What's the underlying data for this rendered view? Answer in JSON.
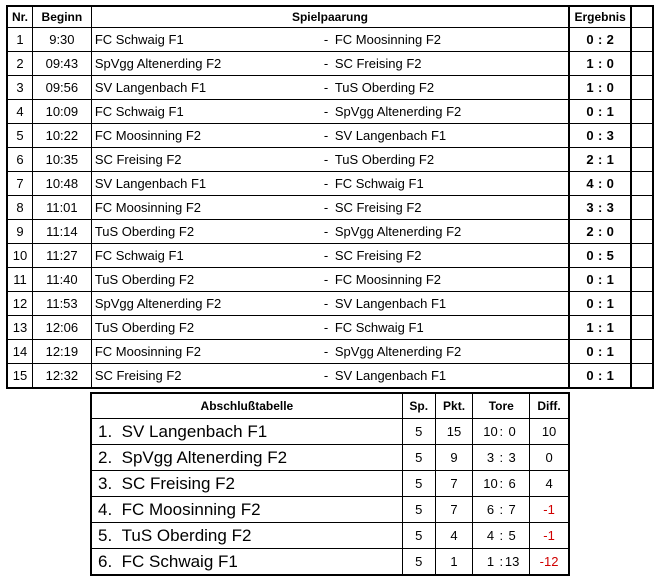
{
  "games": {
    "headers": {
      "nr": "Nr.",
      "begin": "Beginn",
      "pairing": "Spielpaarung",
      "result": "Ergebnis"
    },
    "separator": "-",
    "rows": [
      {
        "nr": "1",
        "time": "9:30",
        "home": "FC Schwaig F1",
        "away": "FC Moosinning F2",
        "hg": "0",
        "ag": "2"
      },
      {
        "nr": "2",
        "time": "09:43",
        "home": "SpVgg Altenerding F2",
        "away": "SC Freising F2",
        "hg": "1",
        "ag": "0"
      },
      {
        "nr": "3",
        "time": "09:56",
        "home": "SV Langenbach F1",
        "away": "TuS Oberding F2",
        "hg": "1",
        "ag": "0"
      },
      {
        "nr": "4",
        "time": "10:09",
        "home": "FC Schwaig F1",
        "away": "SpVgg Altenerding F2",
        "hg": "0",
        "ag": "1"
      },
      {
        "nr": "5",
        "time": "10:22",
        "home": "FC Moosinning F2",
        "away": "SV Langenbach F1",
        "hg": "0",
        "ag": "3"
      },
      {
        "nr": "6",
        "time": "10:35",
        "home": "SC Freising F2",
        "away": "TuS Oberding F2",
        "hg": "2",
        "ag": "1"
      },
      {
        "nr": "7",
        "time": "10:48",
        "home": "SV Langenbach F1",
        "away": "FC Schwaig F1",
        "hg": "4",
        "ag": "0"
      },
      {
        "nr": "8",
        "time": "11:01",
        "home": "FC Moosinning F2",
        "away": "SC Freising F2",
        "hg": "3",
        "ag": "3"
      },
      {
        "nr": "9",
        "time": "11:14",
        "home": "TuS Oberding F2",
        "away": "SpVgg Altenerding F2",
        "hg": "2",
        "ag": "0"
      },
      {
        "nr": "10",
        "time": "11:27",
        "home": "FC Schwaig F1",
        "away": "SC Freising F2",
        "hg": "0",
        "ag": "5"
      },
      {
        "nr": "11",
        "time": "11:40",
        "home": "TuS Oberding F2",
        "away": "FC Moosinning F2",
        "hg": "0",
        "ag": "1"
      },
      {
        "nr": "12",
        "time": "11:53",
        "home": "SpVgg Altenerding F2",
        "away": "SV Langenbach F1",
        "hg": "0",
        "ag": "1"
      },
      {
        "nr": "13",
        "time": "12:06",
        "home": "TuS Oberding F2",
        "away": "FC Schwaig F1",
        "hg": "1",
        "ag": "1"
      },
      {
        "nr": "14",
        "time": "12:19",
        "home": "FC Moosinning F2",
        "away": "SpVgg Altenerding F2",
        "hg": "0",
        "ag": "1"
      },
      {
        "nr": "15",
        "time": "12:32",
        "home": "SC Freising F2",
        "away": "SV Langenbach F1",
        "hg": "0",
        "ag": "1"
      }
    ]
  },
  "standings": {
    "headers": {
      "title": "Abschlußtabelle",
      "games": "Sp.",
      "points": "Pkt.",
      "goals": "Tore",
      "diff": "Diff."
    },
    "negative_color": "#d00000",
    "rows": [
      {
        "rank": "1.",
        "team": "SV Langenbach F1",
        "sp": "5",
        "pkt": "15",
        "gf": "10",
        "ga": "0",
        "diff": "10"
      },
      {
        "rank": "2.",
        "team": "SpVgg Altenerding F2",
        "sp": "5",
        "pkt": "9",
        "gf": "3",
        "ga": "3",
        "diff": "0"
      },
      {
        "rank": "3.",
        "team": "SC Freising F2",
        "sp": "5",
        "pkt": "7",
        "gf": "10",
        "ga": "6",
        "diff": "4"
      },
      {
        "rank": "4.",
        "team": "FC Moosinning F2",
        "sp": "5",
        "pkt": "7",
        "gf": "6",
        "ga": "7",
        "diff": "-1"
      },
      {
        "rank": "5.",
        "team": "TuS Oberding F2",
        "sp": "5",
        "pkt": "4",
        "gf": "4",
        "ga": "5",
        "diff": "-1"
      },
      {
        "rank": "6.",
        "team": "FC Schwaig F1",
        "sp": "5",
        "pkt": "1",
        "gf": "1",
        "ga": "13",
        "diff": "-12"
      }
    ]
  }
}
